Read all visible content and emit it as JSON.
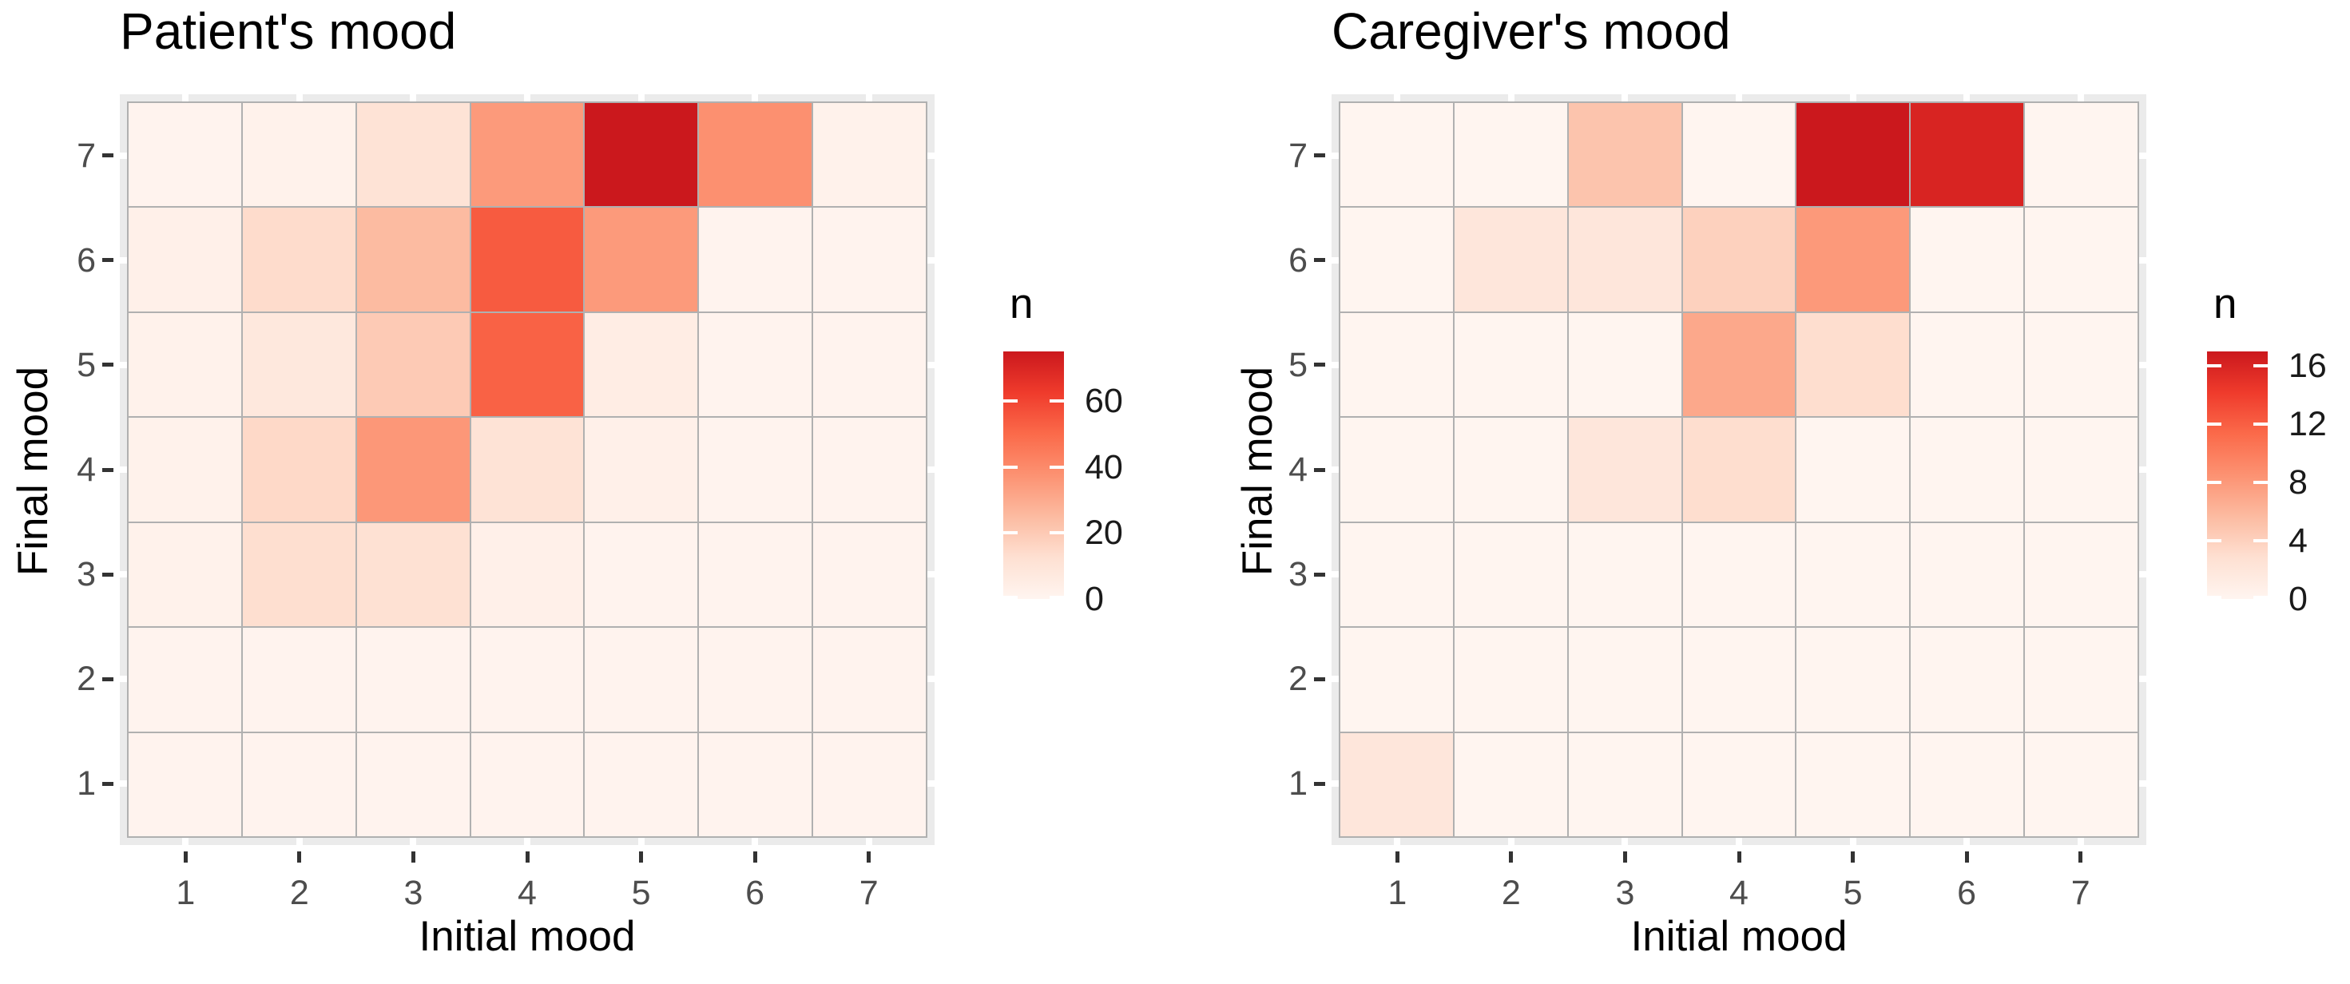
{
  "page": {
    "background": "#FFFFFF"
  },
  "chart_data": [
    {
      "type": "heatmap",
      "title": "Patient's mood",
      "xlabel": "Initial mood",
      "ylabel": "Final mood",
      "x_tick_labels": [
        "1",
        "2",
        "3",
        "4",
        "5",
        "6",
        "7"
      ],
      "y_tick_labels_top_to_bottom": [
        "7",
        "6",
        "5",
        "4",
        "3",
        "2",
        "1"
      ],
      "legend": {
        "title": "n",
        "tick_values": [
          60,
          40,
          20,
          0
        ],
        "scale_max": 75
      },
      "rows_top_to_bottom": [
        [
          1,
          2,
          11,
          35,
          75,
          38,
          2
        ],
        [
          3,
          14,
          25,
          54,
          35,
          1,
          1
        ],
        [
          2,
          8,
          20,
          52,
          5,
          1,
          1
        ],
        [
          2,
          15,
          36,
          11,
          3,
          1,
          1
        ],
        [
          2,
          13,
          12,
          3,
          1,
          1,
          1
        ],
        [
          1,
          1,
          1,
          1,
          1,
          1,
          1
        ],
        [
          1,
          1,
          1,
          1,
          1,
          1,
          1
        ]
      ]
    },
    {
      "type": "heatmap",
      "title": "Caregiver's mood",
      "xlabel": "Initial mood",
      "ylabel": "Final mood",
      "x_tick_labels": [
        "1",
        "2",
        "3",
        "4",
        "5",
        "6",
        "7"
      ],
      "y_tick_labels_top_to_bottom": [
        "7",
        "6",
        "5",
        "4",
        "3",
        "2",
        "1"
      ],
      "legend": {
        "title": "n",
        "tick_values": [
          16,
          12,
          8,
          4,
          0
        ],
        "scale_max": 17
      },
      "rows_top_to_bottom": [
        [
          0,
          0,
          5,
          0,
          17,
          16,
          0
        ],
        [
          0,
          2,
          2,
          4,
          8,
          0,
          0
        ],
        [
          0,
          0,
          0,
          7,
          3,
          0,
          0
        ],
        [
          0,
          0,
          2,
          3,
          0,
          0,
          0
        ],
        [
          0,
          0,
          0,
          0,
          0,
          0,
          0
        ],
        [
          0,
          0,
          0,
          0,
          0,
          0,
          0
        ],
        [
          2,
          0,
          0,
          0,
          0,
          0,
          0
        ]
      ]
    }
  ],
  "palette": {
    "name": "Reds (ColorBrewer sequential)",
    "stops": [
      "#FFF5F0",
      "#FEE0D2",
      "#FCBBA1",
      "#FC9272",
      "#FB6A4A",
      "#EF3B2C",
      "#CB181D"
    ]
  },
  "style_colors": {
    "panel_background": "#EBEBEB",
    "tile_border": "#B0B0B0",
    "axis_text": "#4D4D4D",
    "axis_title": "#000000",
    "title": "#000000",
    "legend_text": "#1A1A1A",
    "tick_mark": "#333333",
    "gridline_notch": "#FFFFFF"
  }
}
